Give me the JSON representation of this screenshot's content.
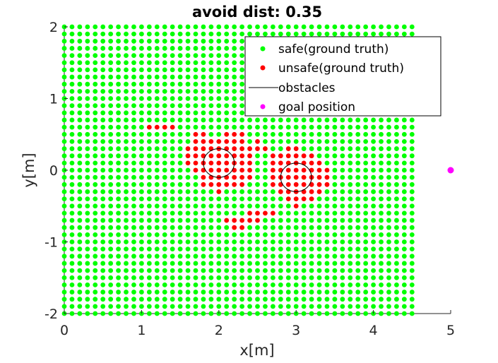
{
  "chart_data": {
    "type": "scatter",
    "title": "avoid dist: 0.35",
    "xlabel": "x[m]",
    "ylabel": "y[m]",
    "xlim": [
      0,
      5
    ],
    "ylim": [
      -2,
      2
    ],
    "xticks": [
      0,
      1,
      2,
      3,
      4,
      5
    ],
    "yticks": [
      -2,
      -1,
      0,
      1,
      2
    ],
    "xtick_labels": [
      "0",
      "1",
      "2",
      "3",
      "4",
      "5"
    ],
    "ytick_labels": [
      "-2",
      "-1",
      "0",
      "1",
      "2"
    ],
    "grid": false,
    "legend_position": "top-right",
    "grid_points": {
      "x_start": 0,
      "x_end": 4.5,
      "y_start": -2,
      "y_end": 2,
      "step": 0.1
    },
    "series": [
      {
        "name": "safe(ground truth)",
        "color": "#00ff00",
        "marker": "dot",
        "description": "every grid point not listed as unsafe"
      },
      {
        "name": "unsafe(ground truth)",
        "color": "#ff0000",
        "marker": "dot",
        "rows": [
          {
            "y": 0.6,
            "x": [
              1.1,
              1.2,
              1.3,
              1.4
            ]
          },
          {
            "y": 0.5,
            "x": [
              1.7,
              1.8,
              2.1,
              2.2,
              2.3
            ]
          },
          {
            "y": 0.4,
            "x": [
              1.7,
              1.8,
              1.9,
              2.0,
              2.1,
              2.2,
              2.3,
              2.5
            ]
          },
          {
            "y": 0.3,
            "x": [
              1.6,
              1.7,
              1.8,
              1.9,
              2.0,
              2.1,
              2.2,
              2.3,
              2.4,
              2.5,
              2.6,
              2.9,
              3.0
            ]
          },
          {
            "y": 0.2,
            "x": [
              1.6,
              1.7,
              1.8,
              1.9,
              2.0,
              2.1,
              2.2,
              2.3,
              2.4,
              2.7,
              2.8,
              2.9,
              3.0,
              3.1,
              3.2
            ]
          },
          {
            "y": 0.1,
            "x": [
              1.6,
              1.7,
              1.8,
              1.9,
              2.0,
              2.1,
              2.2,
              2.3,
              2.4,
              2.7,
              2.8,
              2.9,
              3.0,
              3.1,
              3.2,
              3.3
            ]
          },
          {
            "y": 0.0,
            "x": [
              1.7,
              1.8,
              1.9,
              2.0,
              2.1,
              2.2,
              2.3,
              2.4,
              2.7,
              2.8,
              2.9,
              3.0,
              3.1,
              3.2,
              3.3,
              3.4
            ]
          },
          {
            "y": -0.1,
            "x": [
              1.8,
              1.9,
              2.0,
              2.1,
              2.2,
              2.3,
              2.4,
              2.7,
              2.8,
              2.9,
              3.0,
              3.1,
              3.2,
              3.3,
              3.4
            ]
          },
          {
            "y": -0.2,
            "x": [
              1.8,
              1.9,
              2.0,
              2.1,
              2.2,
              2.3,
              2.7,
              2.8,
              2.9,
              3.0,
              3.1,
              3.2,
              3.3,
              3.4
            ]
          },
          {
            "y": -0.3,
            "x": [
              2.0,
              2.8,
              2.9,
              3.0,
              3.1,
              3.2,
              3.3
            ]
          },
          {
            "y": -0.4,
            "x": [
              2.9,
              3.0,
              3.1,
              3.2
            ]
          },
          {
            "y": -0.5,
            "x": [
              3.0
            ]
          },
          {
            "y": -0.6,
            "x": [
              2.4,
              2.5,
              2.6,
              2.7
            ]
          },
          {
            "y": -0.7,
            "x": [
              2.1,
              2.2,
              2.3,
              2.4,
              2.5
            ]
          },
          {
            "y": -0.8,
            "x": [
              2.2,
              2.3
            ]
          }
        ]
      },
      {
        "name": "obstacles",
        "color": "#000000",
        "marker": "circle",
        "circles": [
          {
            "x": 2.0,
            "y": 0.1,
            "r": 0.2
          },
          {
            "x": 3.0,
            "y": -0.1,
            "r": 0.2
          }
        ]
      },
      {
        "name": "goal position",
        "color": "#ff00ff",
        "marker": "dot",
        "points": [
          {
            "x": 5,
            "y": 0
          }
        ]
      }
    ]
  }
}
